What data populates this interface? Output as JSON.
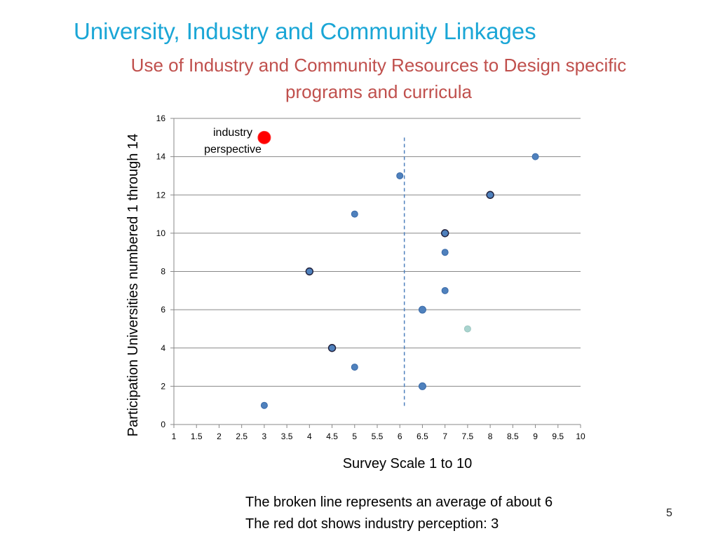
{
  "slide": {
    "title": "University, Industry and Community Linkages",
    "subtitle_line1": "Use of Industry and Community Resources to Design specific",
    "subtitle_line2": "programs and curricula",
    "note_line1": "The broken line represents an average of about 6",
    "note_line2": "The red dot shows industry perception: 3",
    "page_number": "5"
  },
  "chart_data": {
    "type": "scatter",
    "xlabel": "Survey Scale 1 to 10",
    "ylabel": "Participation Universities numbered 1 through 14",
    "xlim": [
      1,
      10
    ],
    "ylim": [
      0,
      16
    ],
    "x_ticks": [
      "1",
      "1.5",
      "2",
      "2.5",
      "3",
      "3.5",
      "4",
      "4.5",
      "5",
      "5.5",
      "6",
      "6.5",
      "7",
      "7.5",
      "8",
      "8.5",
      "9",
      "9.5",
      "10"
    ],
    "y_ticks": [
      "0",
      "2",
      "4",
      "6",
      "8",
      "10",
      "12",
      "14",
      "16"
    ],
    "grid": "horizontal",
    "series": [
      {
        "name": "Participation Universities",
        "points": [
          {
            "x": 3,
            "y": 1
          },
          {
            "x": 6.5,
            "y": 2
          },
          {
            "x": 5,
            "y": 3
          },
          {
            "x": 4.5,
            "y": 4
          },
          {
            "x": 7.5,
            "y": 5
          },
          {
            "x": 6.5,
            "y": 6
          },
          {
            "x": 7,
            "y": 7
          },
          {
            "x": 4,
            "y": 8
          },
          {
            "x": 7,
            "y": 9
          },
          {
            "x": 7,
            "y": 10
          },
          {
            "x": 5,
            "y": 11
          },
          {
            "x": 8,
            "y": 12
          },
          {
            "x": 6,
            "y": 13
          },
          {
            "x": 9,
            "y": 14
          }
        ]
      },
      {
        "name": "industry perspective",
        "points": [
          {
            "x": 3,
            "y": 15
          }
        ]
      }
    ],
    "average_line": {
      "x": 6.1,
      "y_range": [
        0.9,
        15
      ]
    },
    "annotation": {
      "line1": "industry",
      "line2": "perspective"
    },
    "colors": {
      "point": "#4f81bd",
      "point_light": "#a9d4cf",
      "industry": "#ff0000",
      "average_line": "#4f81bd",
      "grid": "#888888"
    }
  }
}
